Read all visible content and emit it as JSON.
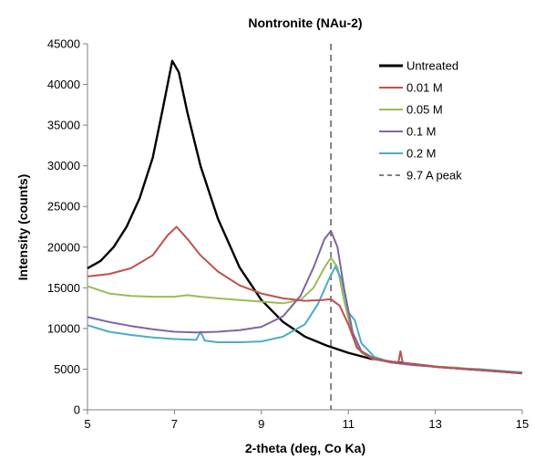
{
  "chart_data": {
    "type": "line",
    "title": "Nontronite (NAu-2)",
    "xlabel": "2-theta (deg, Co Ka)",
    "ylabel": "Intensity (counts)",
    "xlim": [
      5,
      15
    ],
    "ylim": [
      0,
      45000
    ],
    "xticks": [
      "5",
      "7",
      "9",
      "11",
      "13",
      "15"
    ],
    "yticks": [
      "0",
      "5000",
      "10000",
      "15000",
      "20000",
      "25000",
      "30000",
      "35000",
      "40000",
      "45000"
    ],
    "grid": false,
    "legend_position": "top-right",
    "series": [
      {
        "name": "Untreated",
        "color": "#000000",
        "points": [
          [
            5.0,
            17400
          ],
          [
            5.3,
            18300
          ],
          [
            5.6,
            20000
          ],
          [
            5.9,
            22500
          ],
          [
            6.2,
            26000
          ],
          [
            6.5,
            31000
          ],
          [
            6.75,
            37500
          ],
          [
            6.95,
            42900
          ],
          [
            7.1,
            41500
          ],
          [
            7.3,
            36500
          ],
          [
            7.6,
            30000
          ],
          [
            8.0,
            23500
          ],
          [
            8.5,
            17500
          ],
          [
            9.0,
            13500
          ],
          [
            9.5,
            10800
          ],
          [
            10.0,
            9000
          ],
          [
            10.5,
            7900
          ],
          [
            11.0,
            7000
          ],
          [
            11.5,
            6300
          ],
          [
            12.0,
            5900
          ],
          [
            12.5,
            5600
          ],
          [
            13.0,
            5300
          ],
          [
            13.5,
            5100
          ],
          [
            14.0,
            4900
          ],
          [
            14.5,
            4700
          ],
          [
            15.0,
            4500
          ]
        ]
      },
      {
        "name": "0.01 M",
        "color": "#c0504d",
        "points": [
          [
            5.0,
            16400
          ],
          [
            5.5,
            16700
          ],
          [
            6.0,
            17400
          ],
          [
            6.5,
            19000
          ],
          [
            6.85,
            21500
          ],
          [
            7.05,
            22500
          ],
          [
            7.3,
            21000
          ],
          [
            7.6,
            19000
          ],
          [
            8.0,
            17000
          ],
          [
            8.5,
            15300
          ],
          [
            9.0,
            14300
          ],
          [
            9.5,
            13700
          ],
          [
            10.0,
            13400
          ],
          [
            10.4,
            13500
          ],
          [
            10.6,
            13600
          ],
          [
            10.8,
            12800
          ],
          [
            11.0,
            10500
          ],
          [
            11.2,
            7600
          ],
          [
            11.5,
            6400
          ],
          [
            12.0,
            5900
          ],
          [
            12.15,
            5800
          ],
          [
            12.2,
            7200
          ],
          [
            12.25,
            5800
          ],
          [
            12.5,
            5600
          ],
          [
            13.0,
            5300
          ],
          [
            13.5,
            5100
          ],
          [
            14.0,
            4900
          ],
          [
            14.5,
            4700
          ],
          [
            15.0,
            4500
          ]
        ]
      },
      {
        "name": "0.05 M",
        "color": "#9bbb59",
        "points": [
          [
            5.0,
            15200
          ],
          [
            5.5,
            14300
          ],
          [
            6.0,
            14000
          ],
          [
            6.5,
            13900
          ],
          [
            7.0,
            13900
          ],
          [
            7.3,
            14100
          ],
          [
            7.6,
            13900
          ],
          [
            8.0,
            13700
          ],
          [
            8.5,
            13500
          ],
          [
            9.0,
            13300
          ],
          [
            9.5,
            13100
          ],
          [
            9.9,
            13500
          ],
          [
            10.2,
            15000
          ],
          [
            10.45,
            17500
          ],
          [
            10.6,
            18700
          ],
          [
            10.75,
            17500
          ],
          [
            10.9,
            13500
          ],
          [
            11.1,
            9000
          ],
          [
            11.3,
            7000
          ],
          [
            11.6,
            6200
          ],
          [
            12.0,
            5800
          ],
          [
            12.5,
            5500
          ],
          [
            13.0,
            5300
          ],
          [
            13.5,
            5200
          ],
          [
            14.0,
            4900
          ],
          [
            14.5,
            4700
          ],
          [
            15.0,
            4500
          ]
        ]
      },
      {
        "name": "0.1 M",
        "color": "#8064a2",
        "points": [
          [
            5.0,
            11400
          ],
          [
            5.5,
            10800
          ],
          [
            6.0,
            10300
          ],
          [
            6.5,
            9900
          ],
          [
            7.0,
            9600
          ],
          [
            7.5,
            9500
          ],
          [
            8.0,
            9600
          ],
          [
            8.5,
            9800
          ],
          [
            9.0,
            10200
          ],
          [
            9.5,
            11500
          ],
          [
            9.9,
            14000
          ],
          [
            10.2,
            17500
          ],
          [
            10.45,
            21000
          ],
          [
            10.6,
            22000
          ],
          [
            10.75,
            20000
          ],
          [
            10.9,
            15000
          ],
          [
            11.1,
            9500
          ],
          [
            11.3,
            7200
          ],
          [
            11.6,
            6300
          ],
          [
            12.0,
            5800
          ],
          [
            12.5,
            5500
          ],
          [
            13.0,
            5300
          ],
          [
            13.5,
            5100
          ],
          [
            14.0,
            4900
          ],
          [
            14.5,
            4700
          ],
          [
            15.0,
            4500
          ]
        ]
      },
      {
        "name": "0.2 M",
        "color": "#4bacc6",
        "points": [
          [
            5.0,
            10400
          ],
          [
            5.5,
            9600
          ],
          [
            6.0,
            9200
          ],
          [
            6.5,
            8900
          ],
          [
            7.0,
            8700
          ],
          [
            7.5,
            8600
          ],
          [
            7.6,
            9600
          ],
          [
            7.7,
            8500
          ],
          [
            8.0,
            8300
          ],
          [
            8.5,
            8300
          ],
          [
            9.0,
            8400
          ],
          [
            9.5,
            9000
          ],
          [
            10.0,
            10500
          ],
          [
            10.3,
            13000
          ],
          [
            10.55,
            16000
          ],
          [
            10.7,
            17600
          ],
          [
            10.85,
            16000
          ],
          [
            11.0,
            12000
          ],
          [
            11.15,
            11000
          ],
          [
            11.3,
            8200
          ],
          [
            11.6,
            6500
          ],
          [
            12.0,
            5800
          ],
          [
            12.5,
            5500
          ],
          [
            13.0,
            5300
          ],
          [
            13.5,
            5100
          ],
          [
            14.0,
            5000
          ],
          [
            14.5,
            4800
          ],
          [
            15.0,
            4600
          ]
        ]
      }
    ],
    "reference_line": {
      "name": "9.7 A peak",
      "color": "#808080",
      "x": 10.6
    }
  }
}
